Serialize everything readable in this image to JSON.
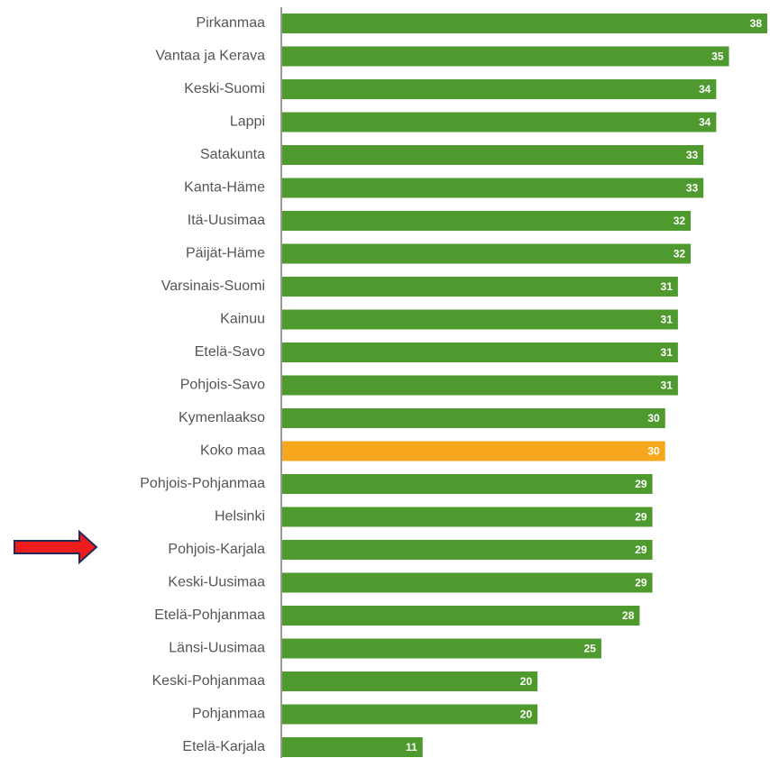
{
  "chart_data": {
    "type": "bar",
    "orientation": "horizontal",
    "categories": [
      "Pirkanmaa",
      "Vantaa ja Kerava",
      "Keski-Suomi",
      "Lappi",
      "Satakunta",
      "Kanta-Häme",
      "Itä-Uusimaa",
      "Päijät-Häme",
      "Varsinais-Suomi",
      "Kainuu",
      "Etelä-Savo",
      "Pohjois-Savo",
      "Kymenlaakso",
      "Koko maa",
      "Pohjois-Pohjanmaa",
      "Helsinki",
      "Pohjois-Karjala",
      "Keski-Uusimaa",
      "Etelä-Pohjanmaa",
      "Länsi-Uusimaa",
      "Keski-Pohjanmaa",
      "Pohjanmaa",
      "Etelä-Karjala"
    ],
    "values": [
      38,
      35,
      34,
      34,
      33,
      33,
      32,
      32,
      31,
      31,
      31,
      31,
      30,
      30,
      29,
      29,
      29,
      29,
      28,
      25,
      20,
      20,
      11
    ],
    "colors": [
      "#4f9a2e",
      "#4f9a2e",
      "#4f9a2e",
      "#4f9a2e",
      "#4f9a2e",
      "#4f9a2e",
      "#4f9a2e",
      "#4f9a2e",
      "#4f9a2e",
      "#4f9a2e",
      "#4f9a2e",
      "#4f9a2e",
      "#4f9a2e",
      "#f6a71e",
      "#4f9a2e",
      "#4f9a2e",
      "#4f9a2e",
      "#4f9a2e",
      "#4f9a2e",
      "#4f9a2e",
      "#4f9a2e",
      "#4f9a2e",
      "#4f9a2e"
    ]
  }
}
